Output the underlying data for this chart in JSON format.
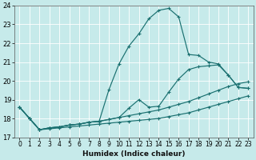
{
  "xlabel": "Humidex (Indice chaleur)",
  "xlim": [
    -0.5,
    23.5
  ],
  "ylim": [
    17,
    24
  ],
  "xticks": [
    0,
    1,
    2,
    3,
    4,
    5,
    6,
    7,
    8,
    9,
    10,
    11,
    12,
    13,
    14,
    15,
    16,
    17,
    18,
    19,
    20,
    21,
    22,
    23
  ],
  "yticks": [
    17,
    18,
    19,
    20,
    21,
    22,
    23,
    24
  ],
  "bg_color": "#c6eaea",
  "grid_color": "#aacccc",
  "line_color": "#1a7070",
  "lines": [
    {
      "x": [
        0,
        1,
        2,
        3,
        4,
        5,
        6,
        7,
        8,
        9,
        10,
        11,
        12,
        13,
        14,
        15,
        16,
        17,
        18,
        19,
        20,
        21,
        22,
        23
      ],
      "y": [
        18.6,
        18.0,
        17.4,
        17.5,
        17.55,
        17.65,
        17.7,
        17.8,
        17.85,
        19.55,
        20.9,
        21.85,
        22.5,
        23.3,
        23.75,
        23.85,
        23.4,
        21.4,
        21.35,
        21.0,
        20.9,
        20.3,
        19.65,
        19.6
      ]
    },
    {
      "x": [
        0,
        1,
        2,
        3,
        4,
        5,
        6,
        7,
        8,
        9,
        10,
        11,
        12,
        13,
        14,
        15,
        16,
        17,
        18,
        19,
        20,
        21,
        22,
        23
      ],
      "y": [
        18.6,
        18.0,
        17.4,
        17.5,
        17.55,
        17.65,
        17.7,
        17.8,
        17.85,
        17.95,
        18.05,
        18.55,
        19.0,
        18.6,
        18.65,
        19.4,
        20.1,
        20.6,
        20.75,
        20.8,
        20.85,
        20.3,
        19.65,
        19.6
      ]
    },
    {
      "x": [
        0,
        1,
        2,
        3,
        4,
        5,
        6,
        7,
        8,
        9,
        10,
        11,
        12,
        13,
        14,
        15,
        16,
        17,
        18,
        19,
        20,
        21,
        22,
        23
      ],
      "y": [
        18.6,
        18.0,
        17.4,
        17.5,
        17.55,
        17.65,
        17.7,
        17.8,
        17.85,
        17.95,
        18.05,
        18.15,
        18.25,
        18.35,
        18.45,
        18.6,
        18.75,
        18.9,
        19.1,
        19.3,
        19.5,
        19.7,
        19.85,
        19.95
      ]
    },
    {
      "x": [
        0,
        1,
        2,
        3,
        4,
        5,
        6,
        7,
        8,
        9,
        10,
        11,
        12,
        13,
        14,
        15,
        16,
        17,
        18,
        19,
        20,
        21,
        22,
        23
      ],
      "y": [
        18.6,
        18.0,
        17.4,
        17.45,
        17.5,
        17.55,
        17.6,
        17.65,
        17.7,
        17.75,
        17.8,
        17.85,
        17.9,
        17.95,
        18.0,
        18.1,
        18.2,
        18.3,
        18.45,
        18.6,
        18.75,
        18.9,
        19.05,
        19.2
      ]
    }
  ]
}
